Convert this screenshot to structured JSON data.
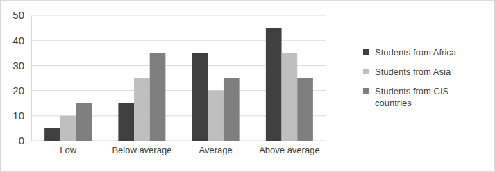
{
  "chart_data": {
    "type": "bar",
    "categories": [
      "Low",
      "Below average",
      "Average",
      "Above average"
    ],
    "series": [
      {
        "name": "Students from Africa",
        "color": "#404040",
        "values": [
          5,
          15,
          35,
          45
        ]
      },
      {
        "name": "Students from Asia",
        "color": "#bfbfbf",
        "values": [
          10,
          25,
          20,
          35
        ]
      },
      {
        "name": "Students from CIS countries",
        "color": "#7f7f7f",
        "values": [
          15,
          35,
          25,
          25
        ]
      }
    ],
    "ylim": [
      0,
      50
    ],
    "yticks": [
      0,
      10,
      20,
      30,
      40,
      50
    ],
    "grid": true,
    "legend": "right"
  }
}
